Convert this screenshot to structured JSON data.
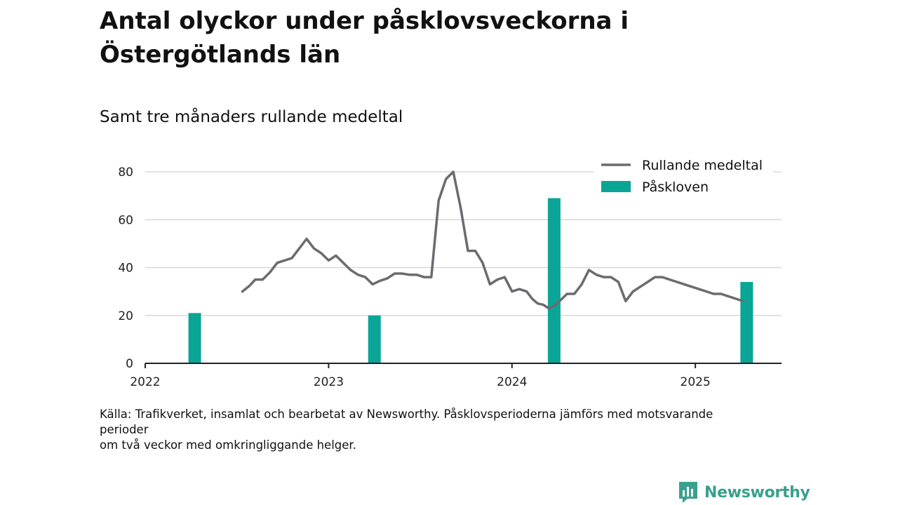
{
  "title": "Antal olyckor under påsklovsveckorna i Östergötlands län",
  "subtitle": "Samt tre månaders rullande medeltal",
  "source_lines": [
    "Källa: Trafikverket, insamlat och bearbetat av Newsworthy. Påsklovsperioderna jämförs med motsvarande perioder",
    "om två veckor med omkringliggande helger."
  ],
  "logo_text": "Newsworthy",
  "colors": {
    "line": "#6b6b70",
    "bar": "#0aa596",
    "grid": "#d9d9d9",
    "axis": "#222222",
    "logo": "#3aa08e"
  },
  "chart_data": {
    "type": "bar+line",
    "title": "Antal olyckor under påsklovsveckorna i Östergötlands län",
    "subtitle": "Samt tre månaders rullande medeltal",
    "xlim": [
      2022.0,
      2025.47
    ],
    "ylim": [
      0,
      80
    ],
    "y_ticks": [
      0,
      20,
      40,
      60,
      80
    ],
    "x_ticks": [
      2022,
      2023,
      2024,
      2025
    ],
    "x_tick_labels": [
      "2022",
      "2023",
      "2024",
      "2025"
    ],
    "grid": true,
    "legend_position": "top-right",
    "series": [
      {
        "name": "Rullande medeltal",
        "type": "line",
        "color": "#6b6b70",
        "x": [
          2022.53,
          2022.57,
          2022.6,
          2022.64,
          2022.68,
          2022.72,
          2022.76,
          2022.8,
          2022.84,
          2022.88,
          2022.92,
          2022.96,
          2023.0,
          2023.04,
          2023.08,
          2023.12,
          2023.16,
          2023.2,
          2023.24,
          2023.28,
          2023.32,
          2023.36,
          2023.4,
          2023.44,
          2023.48,
          2023.52,
          2023.56,
          2023.6,
          2023.64,
          2023.68,
          2023.72,
          2023.76,
          2023.8,
          2023.84,
          2023.88,
          2023.92,
          2023.96,
          2024.0,
          2024.04,
          2024.08,
          2024.11,
          2024.14,
          2024.17,
          2024.2,
          2024.23,
          2024.26,
          2024.3,
          2024.34,
          2024.38,
          2024.42,
          2024.46,
          2024.5,
          2024.54,
          2024.58,
          2024.62,
          2024.66,
          2024.7,
          2024.74,
          2024.78,
          2024.82,
          2024.86,
          2024.9,
          2024.94,
          2024.98,
          2025.02,
          2025.06,
          2025.1,
          2025.14,
          2025.18,
          2025.22,
          2025.26
        ],
        "values": [
          30,
          32.5,
          35,
          35,
          38,
          42,
          43,
          44,
          48,
          52,
          48,
          46,
          43,
          45,
          42,
          39,
          37,
          36,
          33,
          34.5,
          35.5,
          37.5,
          37.5,
          37,
          37,
          36,
          36,
          68,
          77,
          80,
          65,
          47,
          47,
          42,
          33,
          35,
          36,
          30,
          31,
          30,
          27,
          25,
          24.5,
          23,
          24,
          26,
          29,
          29,
          33,
          39,
          37,
          36,
          36,
          34,
          26,
          30,
          32,
          34,
          36,
          36,
          35,
          34,
          33,
          32,
          31,
          30,
          29,
          29,
          28,
          27,
          26
        ],
        "note": "values read off the chart"
      },
      {
        "name": "Påskloven",
        "type": "bar",
        "color": "#0aa596",
        "x": [
          2022.27,
          2023.25,
          2024.23,
          2025.28
        ],
        "values": [
          21,
          20,
          69,
          34
        ]
      }
    ]
  }
}
